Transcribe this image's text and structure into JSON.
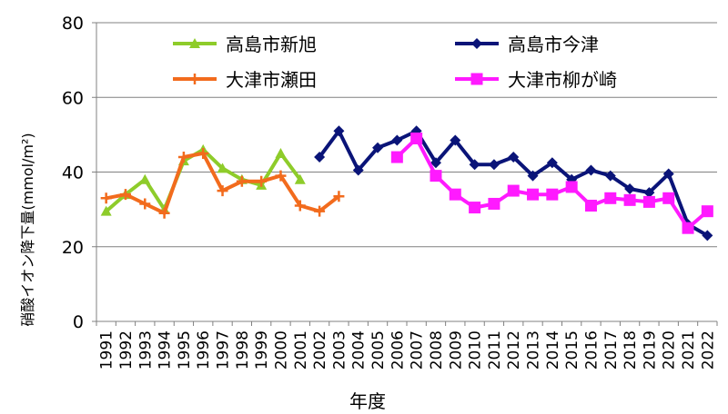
{
  "chart_data": {
    "type": "line",
    "title": "",
    "xlabel": "年度",
    "ylabel": "硝酸イオン降下量(mmol/m²)",
    "ylim": [
      0,
      80
    ],
    "yticks": [
      0,
      20,
      40,
      60,
      80
    ],
    "grid": "horizontal",
    "legend_position": "top, two columns",
    "categories": [
      "1991",
      "1992",
      "1993",
      "1994",
      "1995",
      "1996",
      "1997",
      "1998",
      "1999",
      "2000",
      "2001",
      "2002",
      "2003",
      "2004",
      "2005",
      "2006",
      "2007",
      "2008",
      "2009",
      "2010",
      "2011",
      "2012",
      "2013",
      "2014",
      "2015",
      "2016",
      "2017",
      "2018",
      "2019",
      "2020",
      "2021",
      "2022"
    ],
    "series": [
      {
        "name": "高島市新旭",
        "color": "#8ecc2a",
        "marker": "triangle",
        "values": [
          29.5,
          34,
          38,
          30,
          43,
          46,
          41,
          38,
          36.5,
          45,
          38,
          null,
          null,
          null,
          null,
          null,
          null,
          null,
          null,
          null,
          null,
          null,
          null,
          null,
          null,
          null,
          null,
          null,
          null,
          null,
          null,
          null
        ]
      },
      {
        "name": "大津市瀬田",
        "color": "#f26b1d",
        "marker": "plus",
        "values": [
          33,
          34,
          31.5,
          29,
          44,
          45,
          35,
          37.5,
          37.5,
          39,
          31,
          29.5,
          33.5,
          null,
          null,
          null,
          null,
          null,
          null,
          null,
          null,
          null,
          null,
          null,
          null,
          null,
          null,
          null,
          null,
          null,
          null,
          null
        ]
      },
      {
        "name": "高島市今津",
        "color": "#0a1478",
        "marker": "diamond",
        "values": [
          null,
          null,
          null,
          null,
          null,
          null,
          null,
          null,
          null,
          null,
          null,
          44,
          51,
          40.5,
          46.5,
          48.5,
          51,
          42.5,
          48.5,
          42,
          42,
          44,
          39,
          42.5,
          38,
          40.5,
          39,
          35.5,
          34.5,
          39.5,
          26,
          23
        ]
      },
      {
        "name": "大津市柳が崎",
        "color": "#ff1aff",
        "marker": "square",
        "values": [
          null,
          null,
          null,
          null,
          null,
          null,
          null,
          null,
          null,
          null,
          null,
          null,
          null,
          null,
          null,
          44,
          49,
          39,
          34,
          30.5,
          31.5,
          35,
          34,
          34,
          36,
          31,
          33,
          32.5,
          32,
          33,
          25,
          29.5
        ]
      }
    ]
  }
}
